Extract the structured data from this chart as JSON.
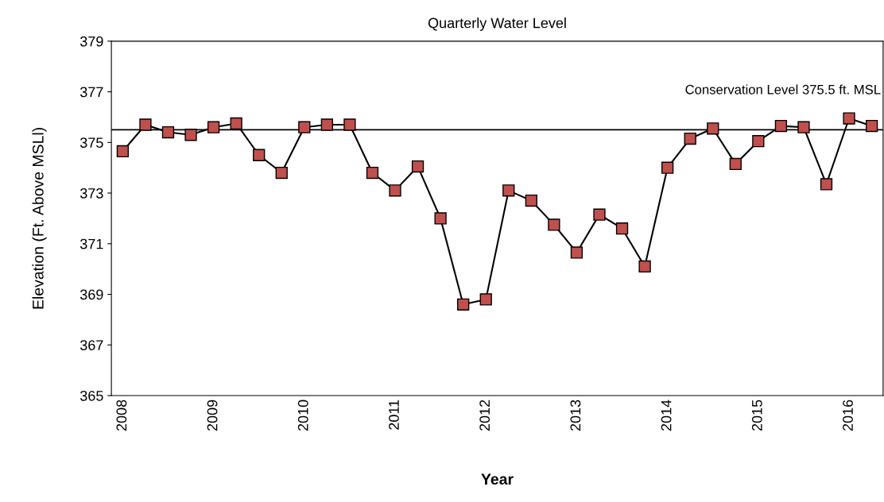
{
  "chart_data": {
    "type": "line",
    "title": "Quarterly Water Level",
    "xlabel": "Year",
    "ylabel": "Elevation (Ft. Above MSLl)",
    "categories": [
      "2008",
      null,
      null,
      null,
      "2009",
      null,
      null,
      null,
      "2010",
      null,
      null,
      null,
      "2011",
      null,
      null,
      null,
      "2012",
      null,
      null,
      null,
      "2013",
      null,
      null,
      null,
      "2014",
      null,
      null,
      null,
      "2015",
      null,
      null,
      null,
      "2016",
      null
    ],
    "series": [
      {
        "color": "#c0504d",
        "values": [
          374.65,
          375.7,
          375.4,
          375.3,
          375.6,
          375.75,
          374.5,
          373.8,
          375.6,
          375.7,
          375.7,
          373.8,
          373.1,
          374.05,
          372.0,
          368.6,
          368.8,
          373.1,
          372.7,
          371.75,
          370.65,
          372.15,
          371.6,
          370.1,
          374.0,
          375.15,
          375.55,
          374.15,
          375.05,
          375.65,
          375.6,
          373.35,
          375.95,
          375.65
        ]
      }
    ],
    "ylim": [
      365,
      379
    ],
    "yticks": [
      365,
      367,
      369,
      371,
      373,
      375,
      377,
      379
    ],
    "ref_lines": [
      {
        "axis": "y",
        "value": 375.5,
        "label": "Conservation Level 375.5 ft. MSL",
        "color": "#000000"
      }
    ],
    "marker": "square",
    "grid": false,
    "legend": false
  }
}
